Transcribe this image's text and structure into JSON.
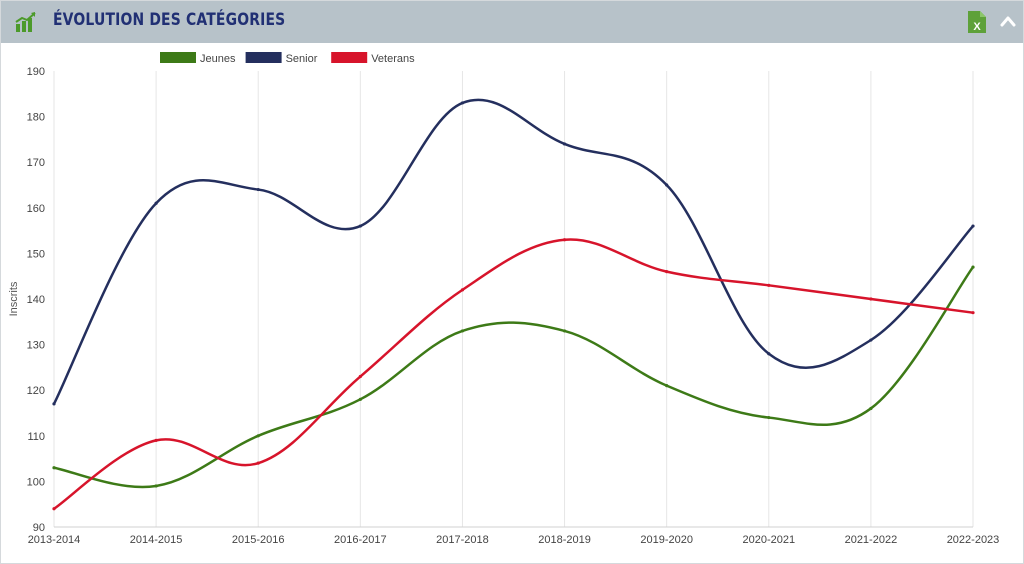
{
  "header": {
    "title": "ÉVOLUTION DES CATÉGORIES",
    "icon": "bar-chart-trend-icon",
    "export_icon": "excel-export-icon",
    "export_label": "X",
    "collapse_icon": "chevron-up-icon",
    "background": "#b7c2c9",
    "title_color": "#213074"
  },
  "chart_data": {
    "type": "line",
    "ylabel": "Inscrits",
    "xlabel": "",
    "ylim": [
      90,
      190
    ],
    "yticks": [
      90,
      100,
      110,
      120,
      130,
      140,
      150,
      160,
      170,
      180,
      190
    ],
    "categories": [
      "2013-2014",
      "2014-2015",
      "2015-2016",
      "2016-2017",
      "2017-2018",
      "2018-2019",
      "2019-2020",
      "2020-2021",
      "2021-2022",
      "2022-2023"
    ],
    "grid": "vertical",
    "legend": "top",
    "smooth": true,
    "series": [
      {
        "name": "Jeunes",
        "color": "#3d7a17",
        "values": [
          103,
          99,
          110,
          118,
          133,
          133,
          121,
          114,
          116,
          147
        ]
      },
      {
        "name": "Senior",
        "color": "#242f5e",
        "values": [
          117,
          161,
          164,
          156,
          183,
          174,
          165,
          128,
          131,
          156
        ]
      },
      {
        "name": "Veterans",
        "color": "#d7142b",
        "values": [
          94,
          109,
          104,
          123,
          142,
          153,
          146,
          143,
          140,
          137
        ]
      }
    ]
  }
}
